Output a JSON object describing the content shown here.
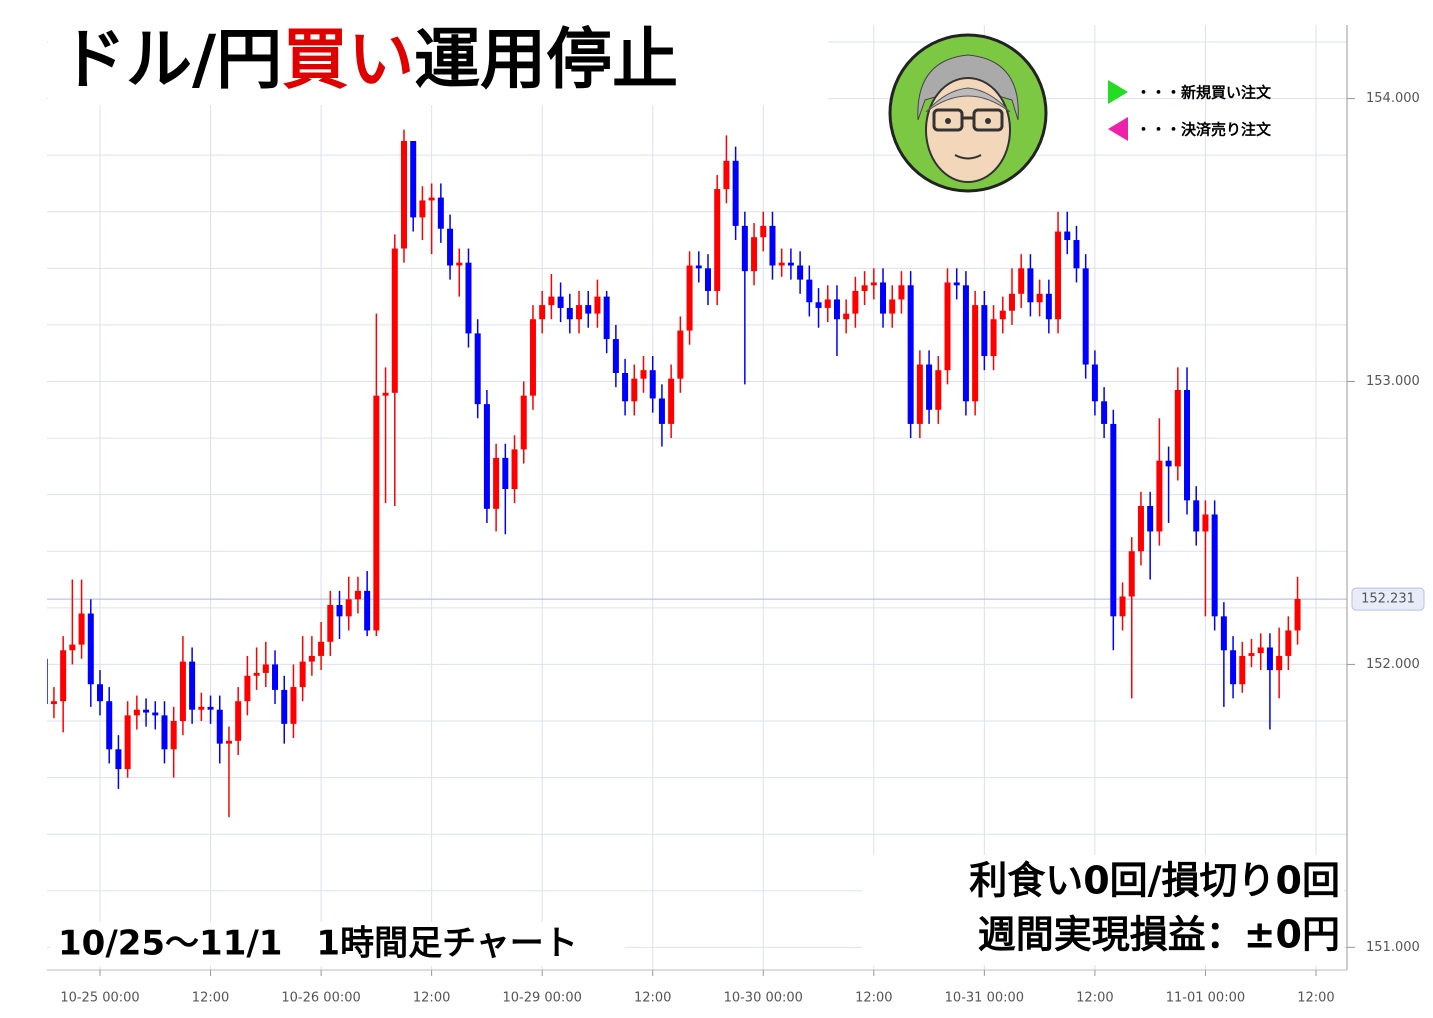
{
  "chart_data": {
    "type": "candlestick",
    "title_parts": [
      "ドル/円",
      "買い",
      "運用停止"
    ],
    "title_colors": [
      "#000000",
      "#e00000",
      "#000000"
    ],
    "legend": [
      {
        "name": "・・・新規買い注文",
        "color": "#22dd22"
      },
      {
        "name": "・・・決済売り注文",
        "color": "#ee22aa"
      }
    ],
    "annotations": [
      "利食い0回/損切り0回",
      "週間実現損益：±0円",
      "10/25～11/1　1時間足チャート"
    ],
    "up_color": "#ff0000",
    "down_color": "#0000ff",
    "categories": [
      null,
      null,
      null,
      null,
      null,
      null,
      "10-25 00:00",
      null,
      null,
      null,
      null,
      null,
      null,
      null,
      null,
      null,
      null,
      null,
      "12:00",
      null,
      null,
      null,
      null,
      null,
      null,
      null,
      null,
      null,
      null,
      null,
      "10-26 00:00",
      null,
      null,
      null,
      null,
      null,
      null,
      null,
      null,
      null,
      null,
      null,
      "12:00",
      null,
      null,
      null,
      null,
      null,
      null,
      null,
      null,
      null,
      null,
      null,
      "10-29 00:00",
      null,
      null,
      null,
      null,
      null,
      null,
      null,
      null,
      null,
      null,
      null,
      "12:00",
      null,
      null,
      null,
      null,
      null,
      null,
      null,
      null,
      null,
      null,
      null,
      "10-30 00:00",
      null,
      null,
      null,
      null,
      null,
      null,
      null,
      null,
      null,
      null,
      null,
      "12:00",
      null,
      null,
      null,
      null,
      null,
      null,
      null,
      null,
      null,
      null,
      null,
      "10-31 00:00",
      null,
      null,
      null,
      null,
      null,
      null,
      null,
      null,
      null,
      null,
      null,
      "12:00",
      null,
      null,
      null,
      null,
      null,
      null,
      null,
      null,
      null,
      null,
      null,
      "11-01 00:00",
      null,
      null,
      null,
      null,
      null,
      null,
      null,
      null,
      null,
      null,
      null,
      "12:00"
    ],
    "open": [
      152.02,
      151.86,
      151.87,
      152.05,
      152.07,
      152.18,
      151.93,
      151.87,
      151.7,
      151.63,
      151.82,
      151.84,
      151.83,
      151.82,
      151.7,
      151.8,
      152.01,
      151.84,
      151.85,
      151.84,
      151.72,
      151.73,
      151.87,
      151.96,
      151.97,
      152.0,
      151.91,
      151.79,
      151.92,
      152.01,
      152.03,
      152.08,
      152.21,
      152.17,
      152.23,
      152.26,
      152.12,
      152.95,
      152.96,
      153.47,
      153.85,
      153.58,
      153.64,
      153.65,
      153.54,
      153.41,
      153.42,
      153.17,
      152.92,
      152.55,
      152.73,
      152.62,
      152.76,
      152.95,
      153.22,
      153.27,
      153.3,
      153.26,
      153.22,
      153.27,
      153.24,
      153.3,
      153.15,
      153.03,
      152.93,
      153.01,
      153.04,
      152.94,
      152.85,
      153.01,
      153.18,
      153.41,
      153.4,
      153.32,
      153.68,
      153.78,
      153.55,
      153.39,
      153.51,
      153.55,
      153.41,
      153.42,
      153.41,
      153.36,
      153.28,
      153.26,
      153.29,
      153.22,
      153.24,
      153.32,
      153.34,
      153.35,
      153.24,
      153.29,
      153.34,
      152.85,
      153.06,
      152.9,
      153.04,
      153.35,
      153.34,
      152.93,
      153.27,
      153.09,
      153.22,
      153.25,
      153.31,
      153.4,
      153.28,
      153.31,
      153.22,
      153.53,
      153.5,
      153.4,
      153.06,
      152.93,
      152.85,
      152.17,
      152.24,
      152.4,
      152.56,
      152.47,
      152.72,
      152.7,
      152.97,
      152.58,
      152.47,
      152.53,
      152.17,
      152.05,
      151.93,
      152.03,
      152.04,
      152.06,
      151.98,
      152.03,
      152.12,
      null,
      null
    ],
    "high": [
      152.07,
      151.92,
      152.1,
      152.3,
      152.3,
      152.23,
      151.98,
      151.92,
      151.75,
      151.87,
      151.89,
      151.88,
      151.87,
      151.87,
      151.85,
      152.1,
      152.06,
      151.9,
      151.89,
      151.89,
      151.78,
      151.92,
      152.03,
      152.06,
      152.08,
      152.05,
      151.96,
      152.0,
      152.1,
      152.1,
      152.15,
      152.26,
      152.26,
      152.31,
      152.31,
      152.33,
      153.24,
      153.05,
      153.52,
      153.89,
      153.85,
      153.69,
      153.7,
      153.7,
      153.59,
      153.47,
      153.47,
      153.22,
      152.97,
      152.78,
      152.78,
      152.81,
      153.0,
      153.27,
      153.32,
      153.38,
      153.35,
      153.31,
      153.32,
      153.32,
      153.36,
      153.32,
      153.2,
      153.08,
      153.06,
      153.09,
      153.09,
      152.99,
      153.06,
      153.23,
      153.46,
      153.46,
      153.45,
      153.73,
      153.87,
      153.83,
      153.6,
      153.56,
      153.6,
      153.6,
      153.47,
      153.47,
      153.46,
      153.41,
      153.33,
      153.34,
      153.34,
      153.29,
      153.37,
      153.39,
      153.4,
      153.4,
      153.34,
      153.39,
      153.39,
      153.11,
      153.11,
      153.09,
      153.4,
      153.4,
      153.39,
      153.32,
      153.32,
      153.27,
      153.3,
      153.4,
      153.45,
      153.45,
      153.36,
      153.36,
      153.6,
      153.6,
      153.55,
      153.45,
      153.11,
      152.98,
      152.9,
      152.29,
      152.45,
      152.61,
      152.61,
      152.87,
      152.77,
      153.05,
      153.05,
      152.63,
      152.58,
      152.58,
      152.22,
      152.1,
      152.08,
      152.09,
      152.11,
      152.11,
      152.13,
      152.17,
      152.31,
      null,
      null
    ],
    "low": [
      151.81,
      151.81,
      151.76,
      152.0,
      152.02,
      151.85,
      151.82,
      151.65,
      151.56,
      151.6,
      151.77,
      151.78,
      151.77,
      151.65,
      151.6,
      151.75,
      151.79,
      151.8,
      151.79,
      151.65,
      151.46,
      151.68,
      151.82,
      151.91,
      151.92,
      151.86,
      151.72,
      151.74,
      151.87,
      151.96,
      151.98,
      152.03,
      152.09,
      152.12,
      152.18,
      152.1,
      152.1,
      152.57,
      152.56,
      153.42,
      153.53,
      153.5,
      153.45,
      153.49,
      153.36,
      153.3,
      153.12,
      152.87,
      152.5,
      152.47,
      152.46,
      152.57,
      152.71,
      152.9,
      153.17,
      153.22,
      153.21,
      153.17,
      153.17,
      153.19,
      153.19,
      153.1,
      152.98,
      152.88,
      152.88,
      152.96,
      152.89,
      152.77,
      152.8,
      152.96,
      153.13,
      153.35,
      153.27,
      153.27,
      153.63,
      153.5,
      152.99,
      153.34,
      153.46,
      153.36,
      153.37,
      153.36,
      153.31,
      153.23,
      153.19,
      153.21,
      153.09,
      153.17,
      153.19,
      153.27,
      153.29,
      153.19,
      153.19,
      153.24,
      152.8,
      152.8,
      152.85,
      152.85,
      152.99,
      153.29,
      152.88,
      152.88,
      153.04,
      153.04,
      153.17,
      153.2,
      153.26,
      153.23,
      153.23,
      153.17,
      153.17,
      153.45,
      153.35,
      153.01,
      152.88,
      152.8,
      152.05,
      152.12,
      151.88,
      152.35,
      152.3,
      152.42,
      152.5,
      152.65,
      152.53,
      152.42,
      152.17,
      152.12,
      151.85,
      151.88,
      151.9,
      151.99,
      151.98,
      151.77,
      151.88,
      151.98,
      152.07,
      null,
      null
    ],
    "close": [
      151.86,
      151.87,
      152.05,
      152.07,
      152.18,
      151.93,
      151.87,
      151.7,
      151.63,
      151.82,
      151.84,
      151.83,
      151.82,
      151.7,
      151.8,
      152.01,
      151.84,
      151.85,
      151.84,
      151.72,
      151.73,
      151.87,
      151.96,
      151.97,
      152.0,
      151.91,
      151.79,
      151.92,
      152.01,
      152.03,
      152.08,
      152.21,
      152.17,
      152.23,
      152.26,
      152.12,
      152.95,
      152.96,
      153.47,
      153.85,
      153.58,
      153.64,
      153.65,
      153.54,
      153.41,
      153.42,
      153.17,
      152.92,
      152.55,
      152.73,
      152.62,
      152.76,
      152.95,
      153.22,
      153.27,
      153.3,
      153.26,
      153.22,
      153.27,
      153.24,
      153.3,
      153.15,
      153.03,
      152.93,
      153.01,
      153.04,
      152.94,
      152.85,
      153.01,
      153.18,
      153.41,
      153.4,
      153.32,
      153.68,
      153.78,
      153.55,
      153.39,
      153.51,
      153.55,
      153.41,
      153.42,
      153.41,
      153.36,
      153.28,
      153.26,
      153.29,
      153.22,
      153.24,
      153.32,
      153.34,
      153.35,
      153.24,
      153.29,
      153.34,
      152.85,
      153.06,
      152.9,
      153.04,
      153.35,
      153.34,
      152.93,
      153.27,
      153.09,
      153.22,
      153.25,
      153.31,
      153.4,
      153.28,
      153.31,
      153.22,
      153.53,
      153.5,
      153.4,
      153.06,
      152.93,
      152.85,
      152.17,
      152.24,
      152.4,
      152.56,
      152.47,
      152.72,
      152.7,
      152.97,
      152.58,
      152.47,
      152.53,
      152.17,
      152.05,
      151.93,
      152.03,
      152.04,
      152.06,
      151.98,
      152.03,
      152.12,
      152.231,
      null,
      null
    ],
    "ylim": [
      150.92,
      154.26
    ],
    "yticks": [
      {
        "value": 151,
        "label": "151.000"
      },
      {
        "value": 152,
        "label": "152.000"
      },
      {
        "value": 153,
        "label": "153.000"
      },
      {
        "value": 154,
        "label": "154.000"
      }
    ],
    "minor_yticks": [
      151.2,
      151.4,
      151.6,
      151.8,
      152.2,
      152.4,
      152.6,
      152.8,
      153.2,
      153.4,
      153.6,
      153.8,
      154.2
    ],
    "last_price": {
      "value": 152.231,
      "label": "152.231"
    },
    "grid": true
  }
}
